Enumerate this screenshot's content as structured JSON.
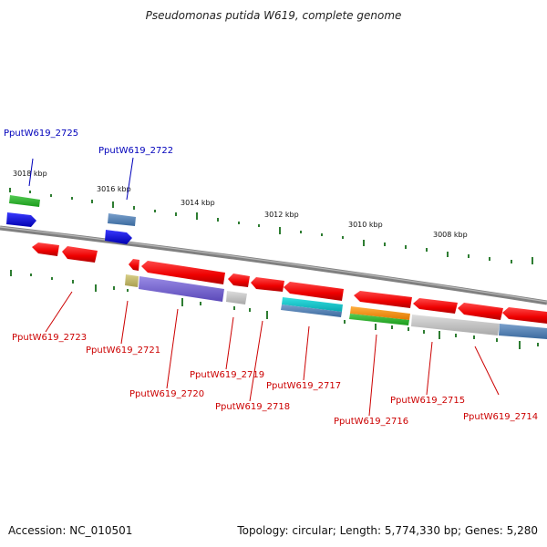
{
  "title": "Pseudomonas putida W619, complete genome",
  "footer": {
    "accession": "Accession: NC_010501",
    "summary": "Topology: circular; Length: 5,774,330 bp; Genes: 5,280"
  },
  "scale": {
    "ticks": [
      "3018 kbp",
      "3016 kbp",
      "3014 kbp",
      "3012 kbp",
      "3010 kbp",
      "3008 kbp"
    ]
  },
  "genes": {
    "forward": [
      "PputW619_2725",
      "PputW619_2722"
    ],
    "reverse": [
      "PputW619_2723",
      "PputW619_2721",
      "PputW619_2720",
      "PputW619_2719",
      "PputW619_2718",
      "PputW619_2717",
      "PputW619_2716",
      "PputW619_2715",
      "PputW619_2714"
    ]
  },
  "colors": {
    "forward_label": "#0000bb",
    "reverse_label": "#cc0000",
    "cds": "#ff0000",
    "backbone": "#808080",
    "ticks": "#2e7d32"
  }
}
